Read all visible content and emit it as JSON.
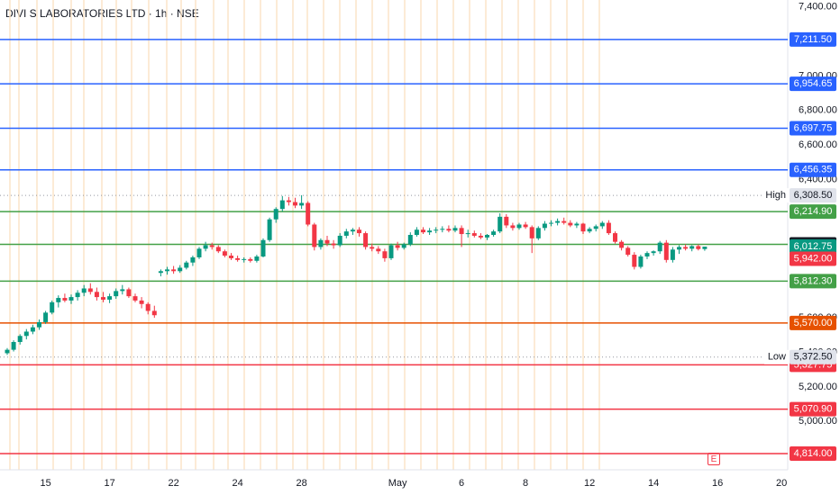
{
  "chart_data": {
    "type": "candlestick",
    "title": "DIVI S LABORATORIES LTD · 1h · NSE",
    "ylim": [
      4720,
      7440
    ],
    "y_ticks": [
      {
        "value": 7400,
        "label": "7,400.00"
      },
      {
        "value": 7000,
        "label": "7,000.00"
      },
      {
        "value": 6800,
        "label": "6,800.00"
      },
      {
        "value": 6600,
        "label": "6,600.00"
      },
      {
        "value": 6400,
        "label": "6,400.00"
      },
      {
        "value": 5600,
        "label": "5,600.00"
      },
      {
        "value": 5400,
        "label": "5,400.00"
      },
      {
        "value": 5200,
        "label": "5,200.00"
      },
      {
        "value": 5000,
        "label": "5,000.00"
      }
    ],
    "x_ticks": [
      {
        "label": "15",
        "idx": 6
      },
      {
        "label": "17",
        "idx": 16
      },
      {
        "label": "22",
        "idx": 26
      },
      {
        "label": "24",
        "idx": 36
      },
      {
        "label": "28",
        "idx": 46
      },
      {
        "label": "May",
        "idx": 61
      },
      {
        "label": "6",
        "idx": 71
      },
      {
        "label": "8",
        "idx": 81
      },
      {
        "label": "12",
        "idx": 91
      },
      {
        "label": "14",
        "idx": 101
      },
      {
        "label": "16",
        "idx": 111
      },
      {
        "label": "20",
        "idx": 121
      }
    ],
    "levels": [
      {
        "value": 7211.5,
        "label": "7,211.50",
        "color": "#2962ff"
      },
      {
        "value": 6954.65,
        "label": "6,954.65",
        "color": "#2962ff"
      },
      {
        "value": 6697.75,
        "label": "6,697.75",
        "color": "#2962ff"
      },
      {
        "value": 6456.35,
        "label": "6,456.35",
        "color": "#2962ff"
      },
      {
        "value": 6214.9,
        "label": "6,214.90",
        "color": "#43a047"
      },
      {
        "value": 6025.5,
        "label": "6,025.50",
        "color": "#43a047"
      },
      {
        "value": 5812.3,
        "label": "5,812.30",
        "color": "#43a047"
      },
      {
        "value": 5570.0,
        "label": "5,570.00",
        "color": "#e65100"
      },
      {
        "value": 5327.75,
        "label": "5,327.75",
        "color": "#f23645"
      },
      {
        "value": 5070.9,
        "label": "5,070.90",
        "color": "#f23645"
      },
      {
        "value": 4814.0,
        "label": "4,814.00",
        "color": "#f23645"
      }
    ],
    "markers": [
      {
        "name": "High",
        "value": 6308.5,
        "label": "6,308.50"
      },
      {
        "name": "Low",
        "value": 5372.5,
        "label": "5,372.50"
      }
    ],
    "last_price": {
      "value": 6012.75,
      "label": "6,012.75",
      "color": "#089981"
    },
    "prev_close": {
      "value": 5942.0,
      "label": "5,942.00",
      "color": "#f23645"
    },
    "series": [
      {
        "name": "",
        "ohlc": [
          [
            5395,
            5425,
            5385,
            5415
          ],
          [
            5415,
            5470,
            5405,
            5460
          ],
          [
            5460,
            5505,
            5445,
            5495
          ],
          [
            5495,
            5535,
            5475,
            5520
          ],
          [
            5520,
            5560,
            5505,
            5545
          ],
          [
            5545,
            5590,
            5530,
            5575
          ],
          [
            5575,
            5640,
            5565,
            5630
          ],
          [
            5630,
            5700,
            5620,
            5690
          ],
          [
            5690,
            5730,
            5660,
            5715
          ],
          [
            5715,
            5740,
            5690,
            5700
          ],
          [
            5700,
            5735,
            5680,
            5720
          ],
          [
            5720,
            5760,
            5700,
            5745
          ],
          [
            5745,
            5790,
            5725,
            5770
          ],
          [
            5770,
            5800,
            5735,
            5750
          ],
          [
            5750,
            5775,
            5700,
            5720
          ],
          [
            5720,
            5750,
            5690,
            5705
          ],
          [
            5705,
            5740,
            5685,
            5725
          ],
          [
            5725,
            5770,
            5710,
            5755
          ],
          [
            5755,
            5790,
            5735,
            5765
          ],
          [
            5765,
            5775,
            5715,
            5725
          ],
          [
            5725,
            5740,
            5690,
            5700
          ],
          [
            5700,
            5720,
            5655,
            5680
          ],
          [
            5680,
            5690,
            5620,
            5640
          ],
          [
            5640,
            5670,
            5600,
            5615
          ],
          [
            5860,
            5880,
            5840,
            5870
          ],
          [
            5870,
            5895,
            5850,
            5880
          ],
          [
            5880,
            5900,
            5855,
            5870
          ],
          [
            5870,
            5905,
            5860,
            5890
          ],
          [
            5890,
            5930,
            5880,
            5920
          ],
          [
            5920,
            5960,
            5900,
            5950
          ],
          [
            5950,
            6010,
            5940,
            6000
          ],
          [
            6000,
            6040,
            5985,
            6020
          ],
          [
            6020,
            6035,
            5995,
            6010
          ],
          [
            6010,
            6020,
            5975,
            5985
          ],
          [
            5985,
            5995,
            5950,
            5960
          ],
          [
            5960,
            5975,
            5935,
            5945
          ],
          [
            5945,
            5960,
            5925,
            5935
          ],
          [
            5935,
            5950,
            5920,
            5940
          ],
          [
            5940,
            5950,
            5920,
            5930
          ],
          [
            5930,
            5965,
            5920,
            5955
          ],
          [
            5955,
            6060,
            5950,
            6050
          ],
          [
            6050,
            6180,
            6040,
            6170
          ],
          [
            6170,
            6240,
            6150,
            6230
          ],
          [
            6230,
            6305,
            6215,
            6280
          ],
          [
            6280,
            6300,
            6250,
            6270
          ],
          [
            6270,
            6295,
            6235,
            6250
          ],
          [
            6250,
            6310,
            6230,
            6265
          ],
          [
            6265,
            6275,
            6130,
            6140
          ],
          [
            6140,
            6150,
            5990,
            6010
          ],
          [
            6010,
            6060,
            5995,
            6050
          ],
          [
            6050,
            6075,
            6015,
            6030
          ],
          [
            6030,
            6050,
            6000,
            6020
          ],
          [
            6020,
            6090,
            6010,
            6075
          ],
          [
            6075,
            6115,
            6060,
            6100
          ],
          [
            6100,
            6120,
            6080,
            6110
          ],
          [
            6110,
            6125,
            6070,
            6090
          ],
          [
            6090,
            6100,
            5995,
            6010
          ],
          [
            6010,
            6030,
            5985,
            6000
          ],
          [
            6000,
            6015,
            5970,
            5985
          ],
          [
            5985,
            6000,
            5925,
            5945
          ],
          [
            5945,
            6030,
            5935,
            6020
          ],
          [
            6020,
            6040,
            5990,
            6005
          ],
          [
            6005,
            6035,
            5995,
            6025
          ],
          [
            6025,
            6095,
            6015,
            6080
          ],
          [
            6080,
            6125,
            6070,
            6110
          ],
          [
            6110,
            6125,
            6085,
            6095
          ],
          [
            6095,
            6120,
            6080,
            6105
          ],
          [
            6105,
            6125,
            6090,
            6110
          ],
          [
            6110,
            6130,
            6095,
            6115
          ],
          [
            6115,
            6135,
            6095,
            6105
          ],
          [
            6105,
            6135,
            6095,
            6120
          ],
          [
            6120,
            6135,
            6010,
            6085
          ],
          [
            6085,
            6110,
            6065,
            6090
          ],
          [
            6090,
            6105,
            6065,
            6075
          ],
          [
            6075,
            6090,
            6055,
            6065
          ],
          [
            6065,
            6085,
            6050,
            6080
          ],
          [
            6080,
            6110,
            6070,
            6100
          ],
          [
            6100,
            6205,
            6090,
            6185
          ],
          [
            6185,
            6200,
            6120,
            6135
          ],
          [
            6135,
            6150,
            6105,
            6120
          ],
          [
            6120,
            6150,
            6110,
            6140
          ],
          [
            6140,
            6155,
            6115,
            6125
          ],
          [
            6125,
            6135,
            5975,
            6060
          ],
          [
            6060,
            6130,
            6050,
            6120
          ],
          [
            6120,
            6160,
            6105,
            6145
          ],
          [
            6145,
            6165,
            6130,
            6150
          ],
          [
            6150,
            6175,
            6135,
            6160
          ],
          [
            6160,
            6180,
            6140,
            6150
          ],
          [
            6150,
            6165,
            6125,
            6135
          ],
          [
            6135,
            6155,
            6120,
            6145
          ],
          [
            6145,
            6150,
            6085,
            6100
          ],
          [
            6100,
            6125,
            6090,
            6115
          ],
          [
            6115,
            6140,
            6100,
            6130
          ],
          [
            6130,
            6160,
            6115,
            6150
          ],
          [
            6150,
            6165,
            6080,
            6090
          ],
          [
            6090,
            6100,
            6030,
            6040
          ],
          [
            6040,
            6050,
            5990,
            6005
          ],
          [
            6005,
            6015,
            5955,
            5965
          ],
          [
            5965,
            5980,
            5880,
            5895
          ],
          [
            5895,
            5965,
            5885,
            5955
          ],
          [
            5955,
            5985,
            5940,
            5975
          ],
          [
            5975,
            5990,
            5960,
            5985
          ],
          [
            5985,
            6045,
            5970,
            6035
          ],
          [
            6035,
            6050,
            5920,
            5935
          ],
          [
            5935,
            6010,
            5920,
            5995
          ],
          [
            5995,
            6020,
            5970,
            6010
          ],
          [
            6010,
            6025,
            5990,
            6000
          ],
          [
            6000,
            6020,
            5985,
            6015
          ],
          [
            6015,
            6025,
            5990,
            5998
          ],
          [
            5998,
            6012,
            5988,
            6012
          ]
        ]
      }
    ]
  }
}
